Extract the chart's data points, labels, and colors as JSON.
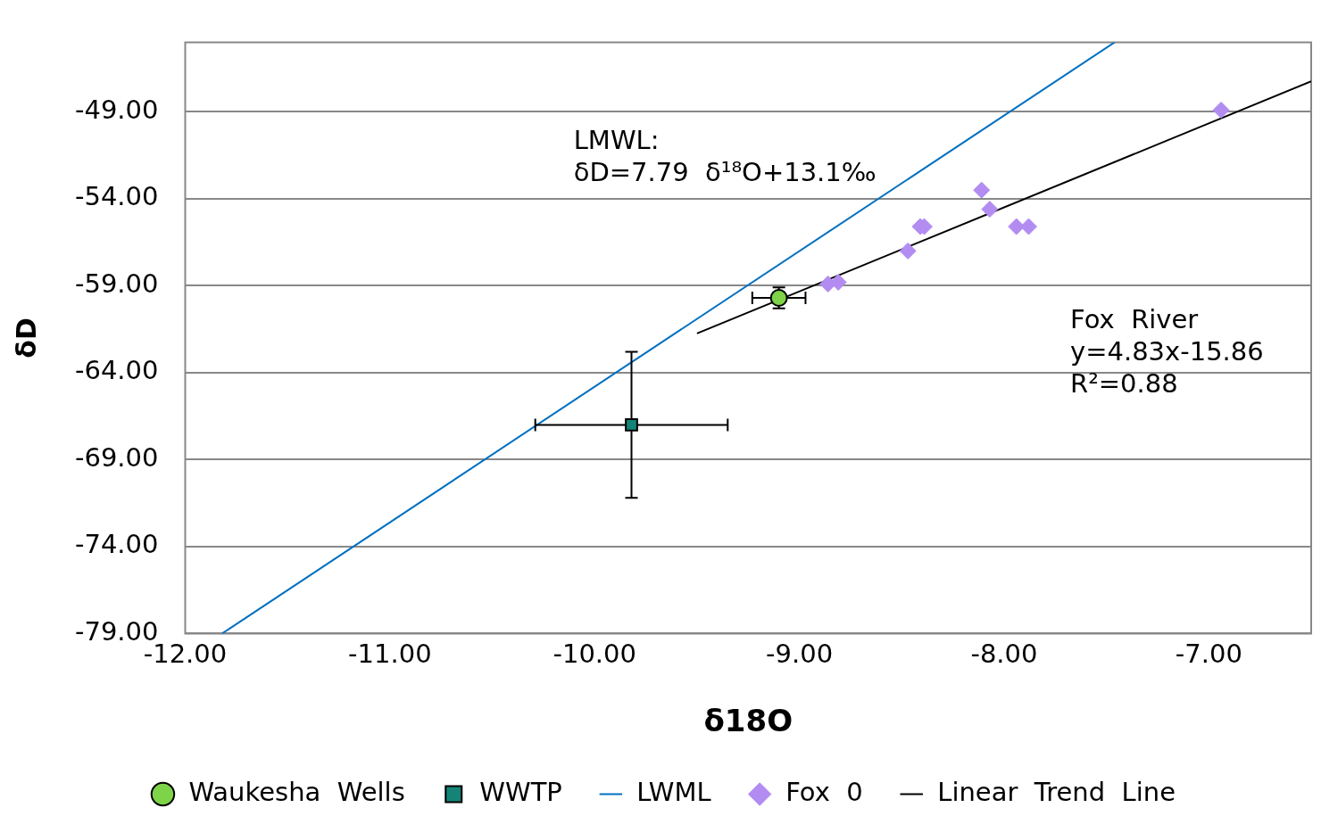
{
  "chart_data": {
    "type": "scatter",
    "xlabel": "δ18O",
    "ylabel": "δD",
    "xlim": [
      -12,
      -6.5
    ],
    "xticks": [
      {
        "value": -12,
        "label": "-12.00"
      },
      {
        "value": -11,
        "label": "-11.00"
      },
      {
        "value": -10,
        "label": "-10.00"
      },
      {
        "value": -9,
        "label": "-9.00"
      },
      {
        "value": -8,
        "label": "-8.00"
      },
      {
        "value": -7,
        "label": "-7.00"
      }
    ],
    "ylim": [
      -79,
      -45
    ],
    "yticks": [
      {
        "value": -79,
        "label": "-79.00"
      },
      {
        "value": -74,
        "label": "-74.00"
      },
      {
        "value": -69,
        "label": "-69.00"
      },
      {
        "value": -64,
        "label": "-64.00"
      },
      {
        "value": -59,
        "label": "-59.00"
      },
      {
        "value": -54,
        "label": "-54.00"
      },
      {
        "value": -49,
        "label": "-49.00"
      }
    ],
    "grid": "y",
    "legend": "bottom",
    "annotations": [
      "LMWL:\nδD=7.79  δ¹⁸O+13.1‰",
      "Fox  River\ny=4.83x-15.86\nR²=0.88"
    ],
    "series": [
      {
        "name": "Waukesha  Wells",
        "marker": "circle",
        "color": "#7ed348",
        "x": [
          -9.1
        ],
        "values": [
          -59.7
        ],
        "errors": [
          0.6
        ],
        "xerrors": [
          0.13
        ]
      },
      {
        "name": "WWTP",
        "marker": "square",
        "color": "#138476",
        "x": [
          -9.82
        ],
        "values": [
          -67.0
        ],
        "errors": [
          4.2
        ],
        "xerrors": [
          0.47
        ]
      },
      {
        "name": "LWML",
        "type": "line",
        "marker": "none",
        "color": "#0070c0",
        "x": [
          -11.82,
          -7.46
        ],
        "values": [
          -79.0,
          -45.0
        ]
      },
      {
        "name": "Fox  0",
        "marker": "diamond",
        "color": "#b38cf2",
        "x": [
          -6.94,
          -8.11,
          -8.07,
          -8.41,
          -8.39,
          -7.94,
          -7.88,
          -8.47,
          -8.86,
          -8.81
        ],
        "values": [
          -48.9,
          -53.5,
          -54.6,
          -55.6,
          -55.6,
          -55.6,
          -55.6,
          -57.0,
          -58.9,
          -58.8
        ]
      },
      {
        "name": "Linear  Trend  Line",
        "type": "line",
        "marker": "none",
        "color": "#000000",
        "x": [
          -9.5,
          -6.5
        ],
        "values": [
          -61.74,
          -47.25
        ]
      }
    ]
  }
}
